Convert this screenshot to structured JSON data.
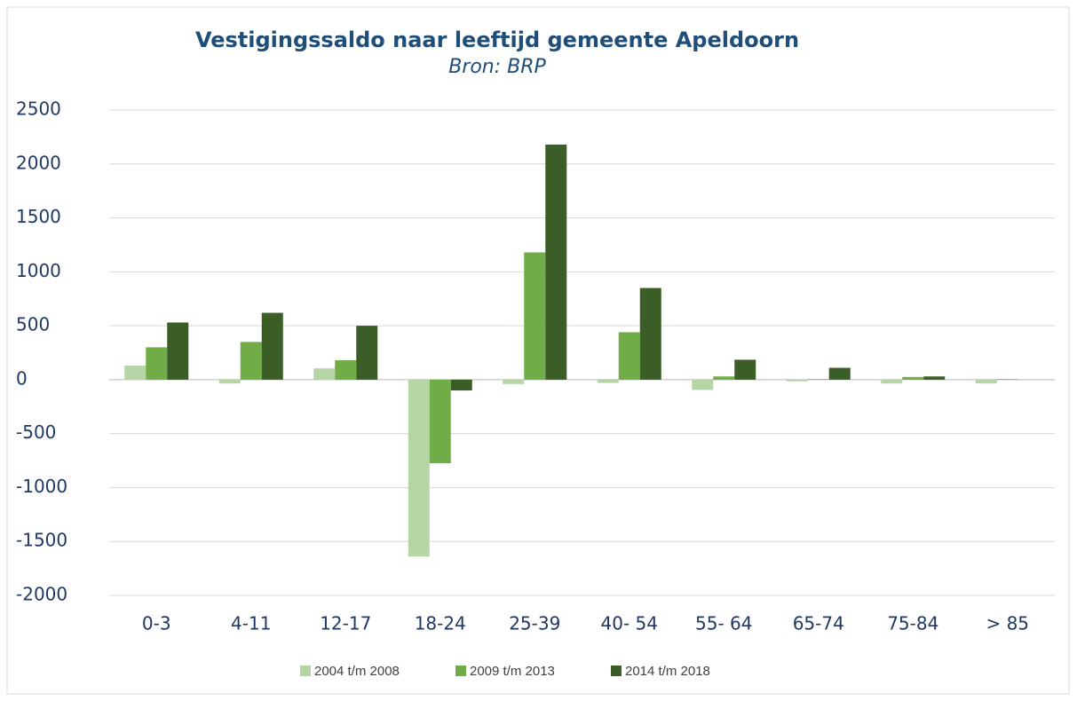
{
  "chart_data": {
    "type": "bar",
    "title": "Vestigingssaldo naar leeftijd gemeente Apeldoorn",
    "subtitle": "Bron: BRP",
    "categories": [
      "0-3",
      "4-11",
      "12-17",
      "18-24",
      "25-39",
      "40- 54",
      "55- 64",
      "65-74",
      "75-84",
      "> 85"
    ],
    "series": [
      {
        "name": "2004 t/m 2008",
        "color": "#b5d5a5",
        "values": [
          130,
          -35,
          105,
          -1640,
          -40,
          -30,
          -95,
          -15,
          -35,
          -35
        ]
      },
      {
        "name": "2009 t/m 2013",
        "color": "#70ad47",
        "values": [
          300,
          350,
          180,
          -775,
          1180,
          440,
          30,
          5,
          25,
          5
        ]
      },
      {
        "name": "2014 t/m 2018",
        "color": "#3b5e27",
        "values": [
          530,
          620,
          500,
          -100,
          2180,
          850,
          185,
          110,
          30,
          0
        ]
      }
    ],
    "ylim": [
      -2000,
      2500
    ],
    "yticks": [
      -2000,
      -1500,
      -1000,
      -500,
      0,
      500,
      1000,
      1500,
      2000,
      2500
    ],
    "grid": true,
    "legend": "bottom"
  }
}
